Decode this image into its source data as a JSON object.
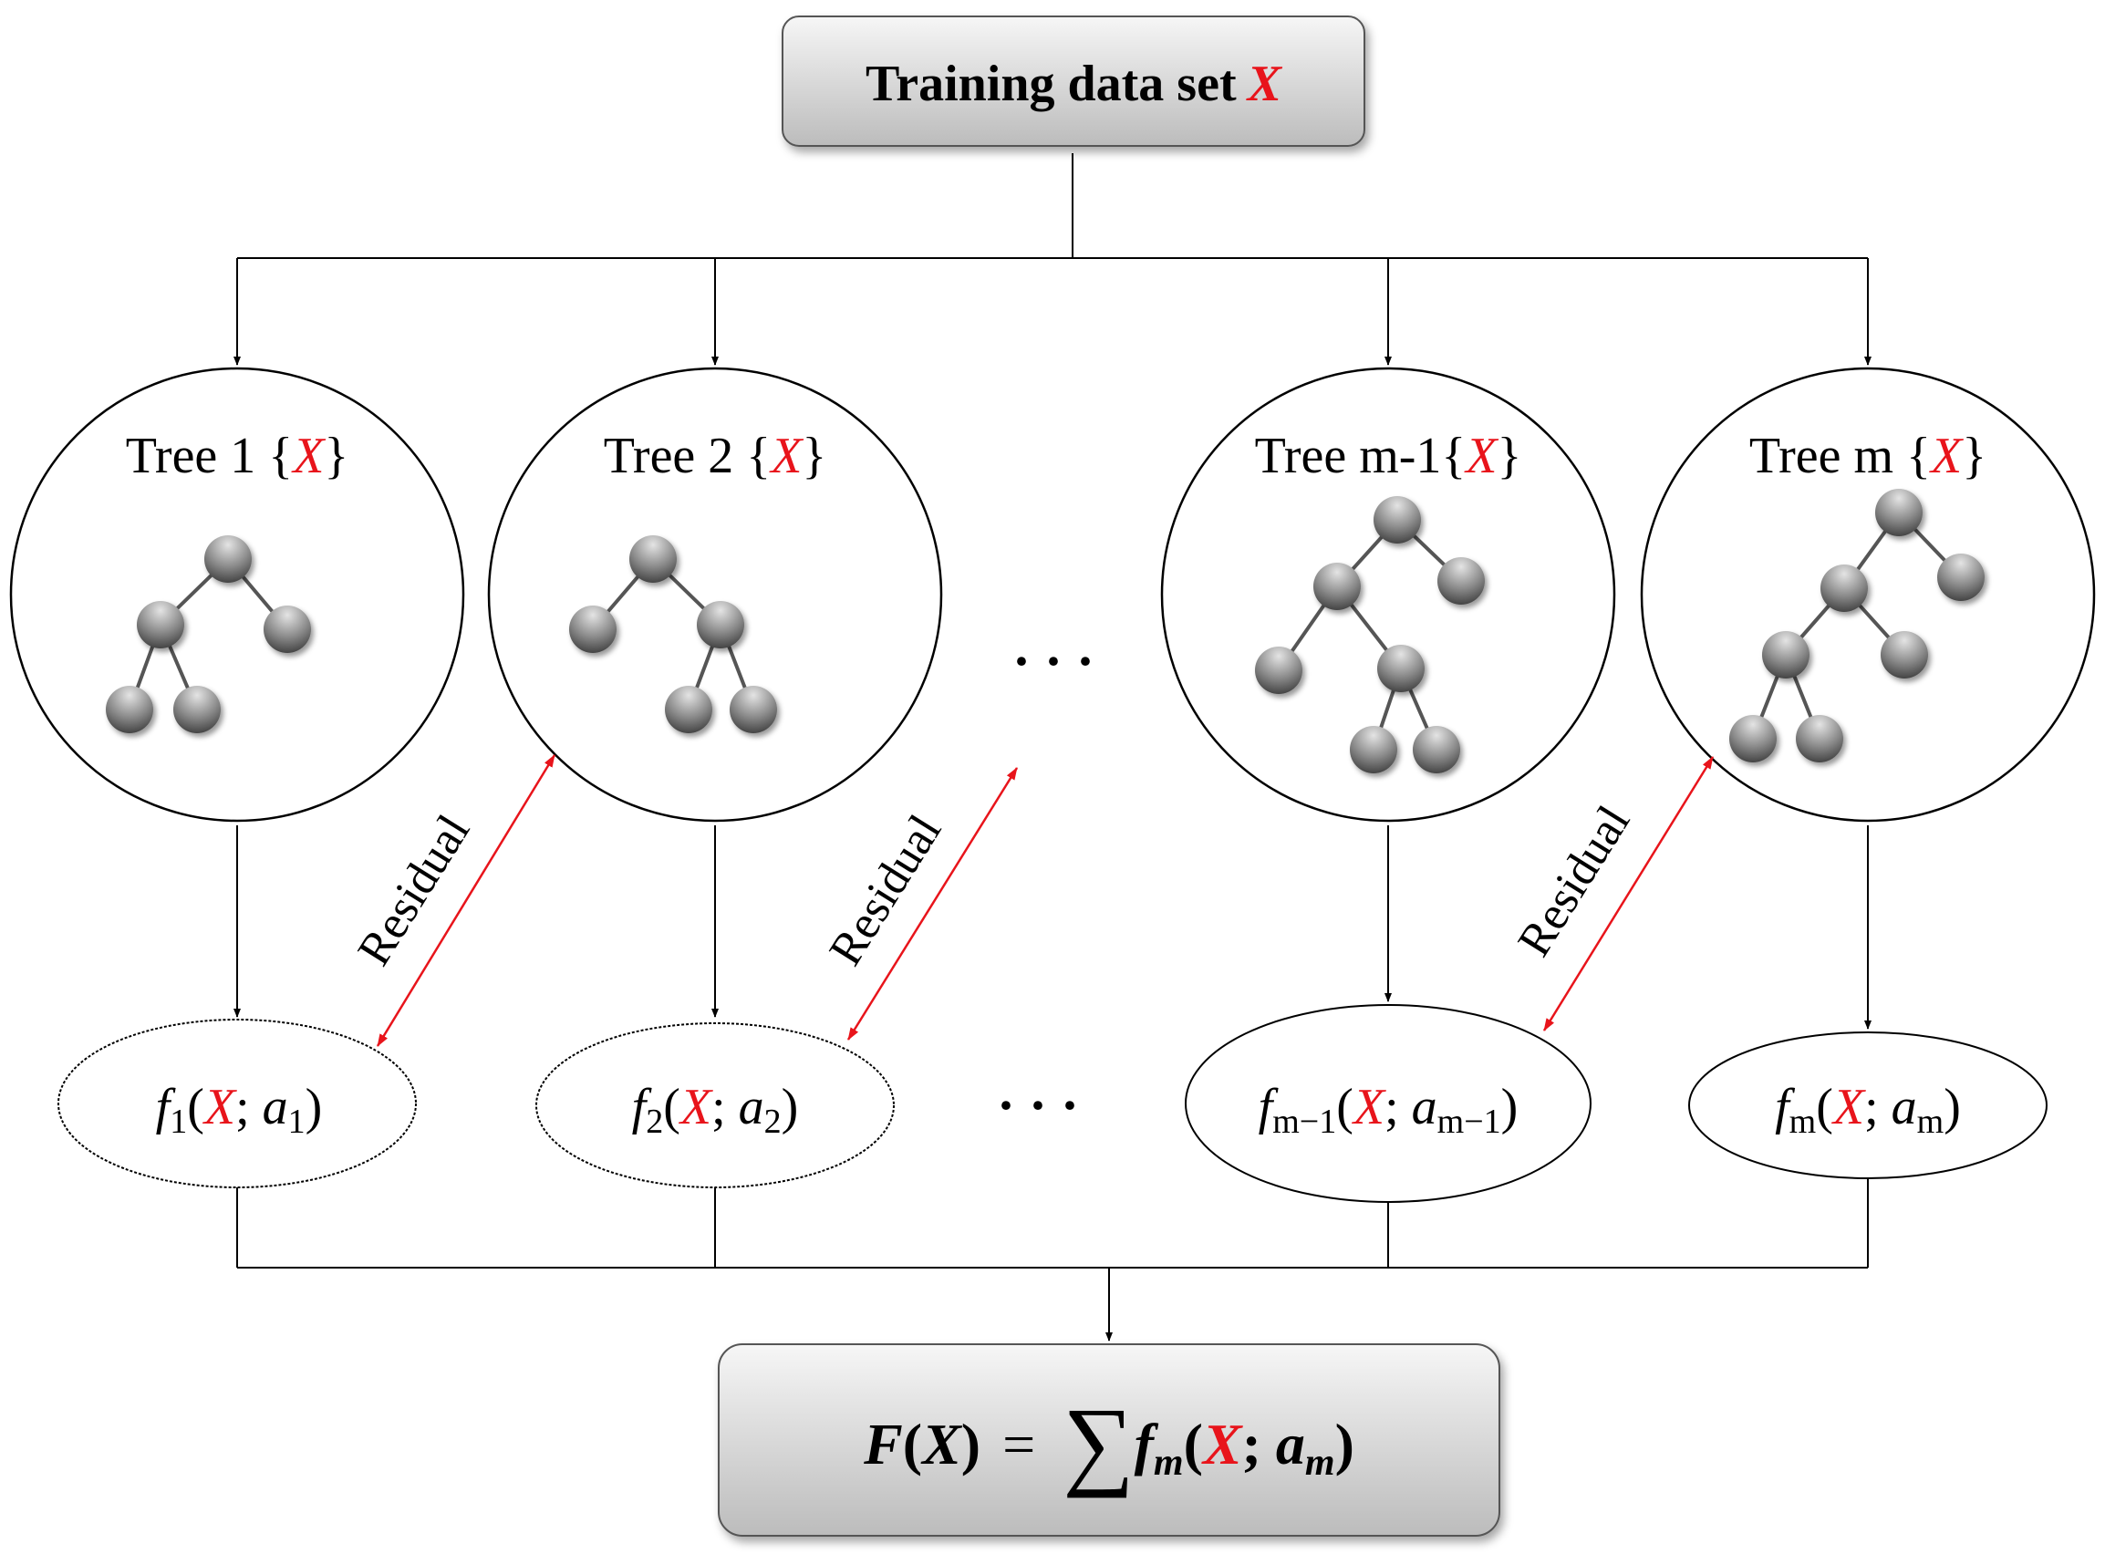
{
  "input_box": {
    "label": "Training data set",
    "var": "X"
  },
  "trees": [
    {
      "title": "Tree 1 ",
      "output": {
        "f": "f",
        "fsub": "1",
        "var": "X",
        "a": "a",
        "asub": "1"
      }
    },
    {
      "title": "Tree 2 ",
      "output": {
        "f": "f",
        "fsub": "2",
        "var": "X",
        "a": "a",
        "asub": "2"
      }
    },
    {
      "title": "Tree m-1",
      "output": {
        "f": "f",
        "fsub": "m−1",
        "var": "X",
        "a": "a",
        "asub": "m−1"
      }
    },
    {
      "title": "Tree m ",
      "output": {
        "f": "f",
        "fsub": "m",
        "var": "X",
        "a": "a",
        "asub": "m"
      }
    }
  ],
  "set_open": "{",
  "set_close": "}",
  "ellipsis": "· · ·",
  "residual_label": "Residual",
  "output_box": {
    "lhs": "F",
    "var": "X",
    "eq": "=",
    "sum": "∑",
    "f": "f",
    "fsub": "m",
    "a": "a",
    "asub": "m"
  },
  "colors": {
    "accent_red": "#e8141b",
    "line": "#000000",
    "box_fill_top": "#f4f4f4",
    "box_fill_bottom": "#bdbdbd",
    "node_light": "#d9d9d9",
    "node_dark": "#3f3f3f"
  }
}
